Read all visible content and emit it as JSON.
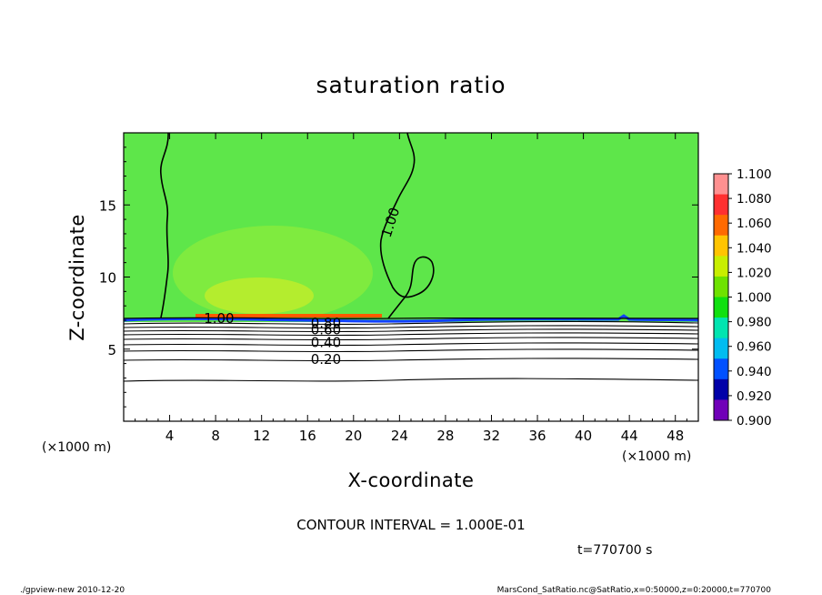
{
  "chart_data": {
    "type": "heatmap",
    "title": "saturation ratio",
    "xlabel": "X-coordinate",
    "ylabel": "Z-coordinate",
    "x_unit": "(×1000 m)",
    "z_unit": "(×1000 m)",
    "xlim": [
      0,
      50
    ],
    "zlim": [
      0,
      20
    ],
    "x_ticks": [
      4,
      8,
      12,
      16,
      20,
      24,
      28,
      32,
      36,
      40,
      44,
      48
    ],
    "z_ticks": [
      5,
      10,
      15
    ],
    "colorbar": {
      "levels": [
        "1.100",
        "1.080",
        "1.060",
        "1.040",
        "1.020",
        "1.000",
        "0.980",
        "0.960",
        "0.940",
        "0.920",
        "0.900"
      ],
      "colors": [
        "#ff9090",
        "#ff3030",
        "#ff6a00",
        "#ffc400",
        "#c8ee00",
        "#6ee200",
        "#10e010",
        "#00e4b0",
        "#00bcf0",
        "#0050ff",
        "#0000a8",
        "#7000b8"
      ]
    },
    "field_colors": {
      "upper": "#5ee64a",
      "moist_patch": "#9aee36",
      "rich_patch": "#c6ee2a",
      "warm_strip": "#ff5a00",
      "interface": "#1040ff",
      "below": "#ffffff"
    },
    "contour_labels": [
      {
        "text": "1.00",
        "x": 8.3,
        "z": 7.12
      },
      {
        "text": "1.00",
        "x": 23.6,
        "z": 14.0
      },
      {
        "text": "0.80",
        "x": 17.6,
        "z": 6.8
      },
      {
        "text": "0.60",
        "x": 17.6,
        "z": 6.35
      },
      {
        "text": "0.40",
        "x": 17.6,
        "z": 5.45
      },
      {
        "text": "0.20",
        "x": 17.6,
        "z": 4.3
      }
    ],
    "contour_interval_text": "CONTOUR INTERVAL = 1.000E-01",
    "time_text": "t=770700 s"
  },
  "footer": {
    "left": "./gpview-new  2010-12-20",
    "right": "MarsCond_SatRatio.nc@SatRatio,x=0:50000,z=0:20000,t=770700"
  }
}
